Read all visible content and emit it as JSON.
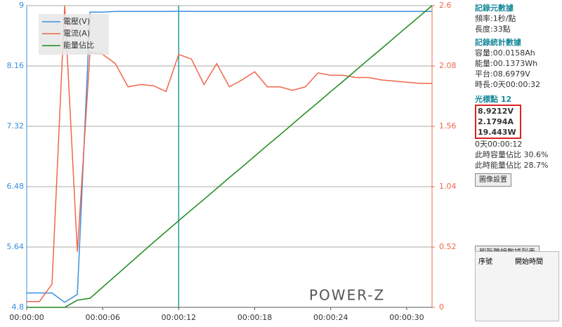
{
  "chart_data": {
    "type": "line",
    "x": [
      0,
      1,
      2,
      3,
      4,
      5,
      6,
      7,
      8,
      9,
      10,
      11,
      12,
      13,
      14,
      15,
      16,
      17,
      18,
      19,
      20,
      21,
      22,
      23,
      24,
      25,
      26,
      27,
      28,
      29,
      30,
      31,
      32
    ],
    "xlim": [
      0,
      32
    ],
    "xticks": [
      {
        "value": 0,
        "label": "00:00:00"
      },
      {
        "value": 6,
        "label": "00:00:06"
      },
      {
        "value": 12,
        "label": "00:00:12"
      },
      {
        "value": 18,
        "label": "00:00:18"
      },
      {
        "value": 24,
        "label": "00:00:24"
      },
      {
        "value": 30,
        "label": "00:00:30"
      }
    ],
    "ylim": [
      4.8,
      9
    ],
    "yticks": [
      4.8,
      5.64,
      6.48,
      7.32,
      8.16,
      9
    ],
    "y2lim": [
      0,
      2.6
    ],
    "y2ticks": [
      0,
      0.52,
      1.04,
      1.56,
      2.08,
      2.6
    ],
    "y3lim": [
      0,
      100
    ],
    "grid": true,
    "legend": "upper left",
    "cursor_x": 12,
    "logo": "POWER-Z",
    "series": [
      {
        "name": "電壓(V)",
        "color": "#3a8fdc",
        "axis": "y",
        "values": [
          5.0,
          5.0,
          5.0,
          4.87,
          4.98,
          8.91,
          8.91,
          8.92,
          8.92,
          8.92,
          8.92,
          8.92,
          8.9212,
          8.92,
          8.92,
          8.92,
          8.92,
          8.92,
          8.92,
          8.92,
          8.92,
          8.92,
          8.92,
          8.92,
          8.92,
          8.92,
          8.92,
          8.92,
          8.92,
          8.92,
          8.92,
          8.92,
          8.92
        ]
      },
      {
        "name": "電流(A)",
        "color": "#f0664a",
        "axis": "y2",
        "values": [
          0.05,
          0.05,
          0.2,
          2.6,
          0.48,
          2.2,
          2.18,
          2.1,
          1.9,
          1.92,
          1.91,
          1.86,
          2.1794,
          2.14,
          1.92,
          2.1,
          1.9,
          1.96,
          2.03,
          1.9,
          1.9,
          1.87,
          1.9,
          2.02,
          2.0,
          2.0,
          1.98,
          1.98,
          1.96,
          1.95,
          1.94,
          1.93,
          1.93
        ]
      },
      {
        "name": "能量佔比",
        "color": "#1a8a1a",
        "axis": "y3",
        "values": [
          0,
          0,
          0,
          0,
          2.4,
          3,
          6.7,
          10.4,
          14.1,
          17.8,
          21.5,
          25.1,
          28.7,
          32.3,
          35.8,
          39.4,
          43,
          46.5,
          50.1,
          53.7,
          57.2,
          60.8,
          64.4,
          67.9,
          71.5,
          75,
          78.6,
          82.2,
          85.7,
          89.3,
          92.9,
          96.4,
          100
        ]
      }
    ]
  },
  "panel": {
    "meta_title": "記錄元數據",
    "frequency": "頻率:1秒/點",
    "length": "長度:33點",
    "stats_title": "記錄統計數據",
    "capacity": "容量:00.0158Ah",
    "energy": "能量:00.1373Wh",
    "platform": "平台:08.6979V",
    "duration": "時長:0天00:00:32",
    "cursor_title": "光標點 12",
    "voltage": "8.9212V",
    "current": "2.1794A",
    "power": "19.443W",
    "time": "0天00:00:12",
    "capacity_ratio": "此時容量佔比 30.6%",
    "energy_ratio": "此時能量佔比 28.7%",
    "image_button": "圖像設置",
    "refresh_button": "刷新離線數據列表",
    "table_headers": [
      "序號",
      "開始時間"
    ]
  }
}
